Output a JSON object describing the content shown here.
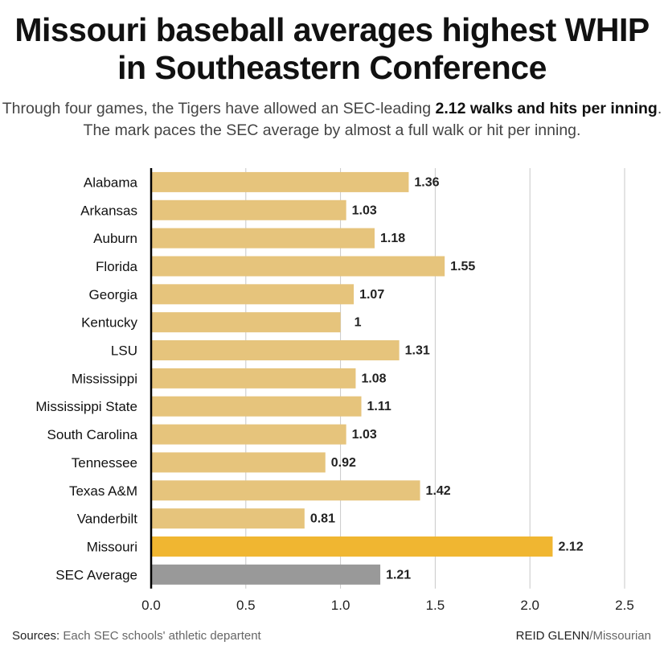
{
  "header": {
    "title": "Missouri baseball averages highest WHIP in Southeastern Conference",
    "subtitle_pre": "Through four games, the Tigers have allowed an SEC-leading ",
    "subtitle_bold": "2.12 walks and hits per inning",
    "subtitle_post": ". The mark paces the SEC average by almost a full walk or hit per inning."
  },
  "chart_data": {
    "type": "bar",
    "orientation": "horizontal",
    "categories": [
      "Alabama",
      "Arkansas",
      "Auburn",
      "Florida",
      "Georgia",
      "Kentucky",
      "LSU",
      "Mississippi",
      "Mississippi State",
      "South Carolina",
      "Tennessee",
      "Texas A&M",
      "Vanderbilt",
      "Missouri",
      "SEC Average"
    ],
    "values": [
      1.36,
      1.03,
      1.18,
      1.55,
      1.07,
      1,
      1.31,
      1.08,
      1.11,
      1.03,
      0.92,
      1.42,
      0.81,
      2.12,
      1.21
    ],
    "labels": [
      "1.36",
      "1.03",
      "1.18",
      "1.55",
      "1.07",
      "1",
      "1.31",
      "1.08",
      "1.11",
      "1.03",
      "0.92",
      "1.42",
      "0.81",
      "2.12",
      "1.21"
    ],
    "xlim": [
      0,
      2.5
    ],
    "xticks": [
      "0.0",
      "0.5",
      "1.0",
      "1.5",
      "2.0",
      "2.5"
    ],
    "grid": true,
    "colors": {
      "default": "#e6c47c",
      "Missouri": "#f0b631",
      "SEC Average": "#999999"
    }
  },
  "footer": {
    "sources_label": "Sources:",
    "sources_text": "Each SEC schools' athletic departent",
    "credit_name": "REID GLENN",
    "credit_org": "/Missourian"
  }
}
